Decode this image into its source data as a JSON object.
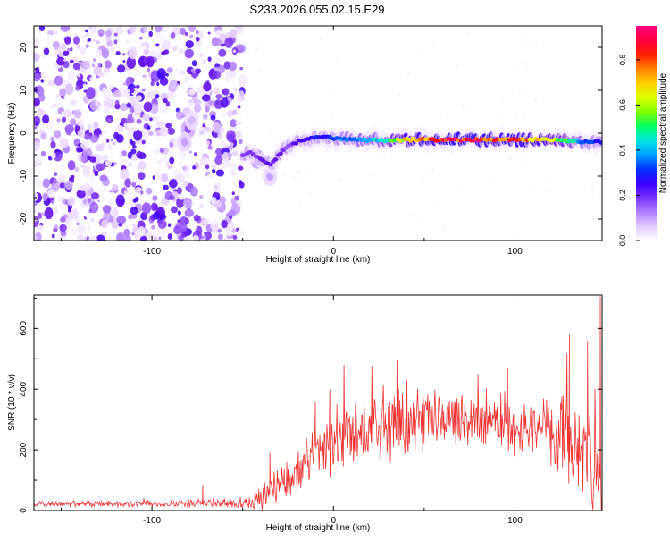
{
  "title": "S233.2026.055.02.15.E29",
  "chart_data": [
    {
      "type": "heatmap",
      "title": "S233.2026.055.02.15.E29",
      "xlabel": "Height of straight line (km)",
      "ylabel": "Frequency (Hz)",
      "xlim": [
        -165,
        148
      ],
      "ylim": [
        -25,
        25
      ],
      "xticks": [
        -100,
        0,
        100
      ],
      "yticks": [
        -20,
        -10,
        0,
        10,
        20
      ],
      "colorbar": {
        "label": "Normalized spectral amplitude",
        "range": [
          0,
          0.95
        ],
        "ticks": [
          0.0,
          0.2,
          0.4,
          0.6,
          0.8
        ],
        "colormap": [
          "#ffffff",
          "#e8d2ff",
          "#a36cff",
          "#5a00e6",
          "#2a00ff",
          "#0050ff",
          "#00e0ff",
          "#00ff40",
          "#b0ff00",
          "#ffff00",
          "#ff8000",
          "#ff0000",
          "#ff0080"
        ]
      },
      "noise_region_x": [
        -165,
        -50
      ],
      "signal_track": {
        "x": [
          -50,
          -45,
          -40,
          -35,
          -30,
          -25,
          -20,
          -15,
          -10,
          -5,
          0,
          10,
          20,
          30,
          40,
          50,
          60,
          70,
          80,
          90,
          100,
          110,
          120,
          130,
          140,
          148
        ],
        "frequency": [
          -5,
          -4.5,
          -6,
          -7.5,
          -5,
          -3,
          -2,
          -1.5,
          -1,
          -0.8,
          -1.2,
          -1.5,
          -1.7,
          -1.7,
          -1.5,
          -1.5,
          -1.5,
          -1.5,
          -1.5,
          -1.5,
          -1.5,
          -1.5,
          -1.5,
          -1.8,
          -2,
          -2
        ],
        "amplitude": [
          0.2,
          0.2,
          0.22,
          0.25,
          0.22,
          0.2,
          0.25,
          0.3,
          0.35,
          0.35,
          0.38,
          0.45,
          0.5,
          0.55,
          0.75,
          0.85,
          0.9,
          0.9,
          0.9,
          0.85,
          0.85,
          0.8,
          0.7,
          0.55,
          0.4,
          0.35
        ]
      },
      "blobs_near_x": [
        -80,
        -82,
        -78,
        -42,
        -35
      ]
    },
    {
      "type": "line",
      "xlabel": "Height of straight line (km)",
      "ylabel": "SNR (10 * v/v)",
      "xlim": [
        -165,
        148
      ],
      "ylim": [
        0,
        710
      ],
      "xticks": [
        -100,
        0,
        100
      ],
      "yticks": [
        0,
        200,
        400,
        600
      ],
      "color": "#ee3333",
      "envelope": {
        "x": [
          -165,
          -100,
          -60,
          -45,
          -40,
          -35,
          -30,
          -25,
          -20,
          -15,
          -10,
          -5,
          0,
          10,
          20,
          30,
          40,
          50,
          60,
          70,
          80,
          90,
          100,
          110,
          120,
          130,
          140,
          148
        ],
        "baseline": [
          22,
          22,
          24,
          24,
          40,
          70,
          90,
          110,
          140,
          160,
          190,
          200,
          215,
          240,
          260,
          280,
          290,
          295,
          300,
          300,
          300,
          295,
          280,
          270,
          250,
          230,
          200,
          170
        ],
        "spread": [
          10,
          12,
          18,
          20,
          45,
          55,
          60,
          70,
          80,
          90,
          110,
          120,
          130,
          130,
          130,
          120,
          110,
          100,
          95,
          90,
          95,
          100,
          110,
          120,
          140,
          160,
          180,
          200
        ]
      },
      "peaks": [
        {
          "x": 147,
          "y": 705
        },
        {
          "x": 130,
          "y": 580
        },
        {
          "x": 35,
          "y": 495
        },
        {
          "x": 140,
          "y": 560
        },
        {
          "x": 96,
          "y": 470
        },
        {
          "x": -10,
          "y": 360
        },
        {
          "x": -2,
          "y": 400
        },
        {
          "x": -35,
          "y": 190
        },
        {
          "x": -72,
          "y": 85
        }
      ]
    }
  ]
}
